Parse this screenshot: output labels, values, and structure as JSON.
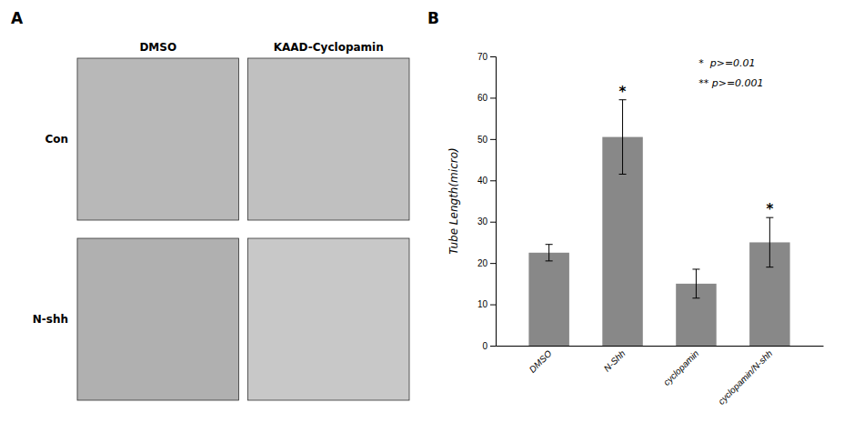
{
  "chart_data": [
    {
      "type": "image_grid",
      "title": "A",
      "col_labels": [
        "DMSO",
        "KAAD-Cyclopamin"
      ],
      "row_labels": [
        "Con",
        "N-shh"
      ],
      "colors": [
        "#b8b8b8",
        "#c0c0c0",
        "#b0b0b0",
        "#c8c8c8"
      ]
    },
    {
      "type": "bar",
      "title": "B",
      "categories": [
        "DMSO",
        "N-Shh",
        "cyclopamin",
        "cyclopamin/N-shh"
      ],
      "values": [
        22.5,
        50.5,
        15.0,
        25.0
      ],
      "errors": [
        2.0,
        9.0,
        3.5,
        6.0
      ],
      "bar_labels": [
        null,
        "*",
        null,
        "*"
      ],
      "color": "#888888",
      "ylabel": "Tube Length(micro)",
      "ylim": [
        0,
        70
      ],
      "yticks": [
        0,
        10,
        20,
        30,
        40,
        50,
        60,
        70
      ],
      "annotations": [
        "*  p>=0.01",
        "** p>=0.001"
      ]
    }
  ]
}
